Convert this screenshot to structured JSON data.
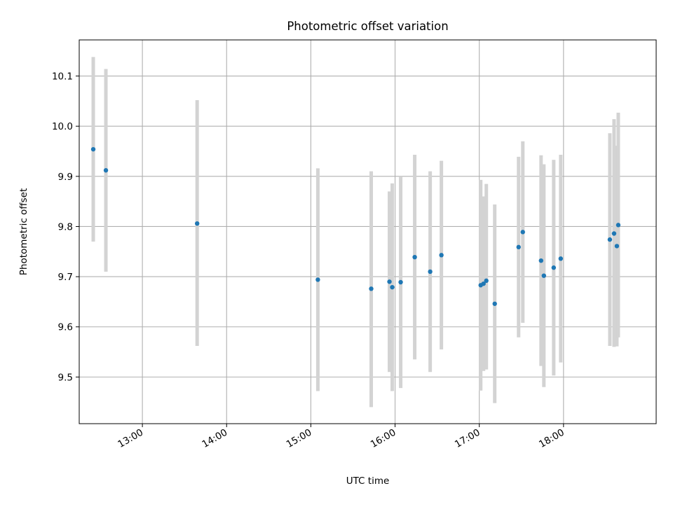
{
  "chart_data": {
    "type": "scatter",
    "title": "Photometric offset variation",
    "xlabel": "UTC time",
    "ylabel": "Photometric offset",
    "x_axis": {
      "kind": "time",
      "range": [
        "12:15",
        "19:06"
      ],
      "ticks": [
        "13:00",
        "14:00",
        "15:00",
        "16:00",
        "17:00",
        "18:00"
      ]
    },
    "y_axis": {
      "range": [
        9.407,
        10.172
      ],
      "ticks": [
        "9.5",
        "9.6",
        "9.7",
        "9.8",
        "9.9",
        "10.0",
        "10.1"
      ]
    },
    "grid": true,
    "errorbar_color": "#d3d3d3",
    "marker_color": "#1f77b4",
    "points": [
      {
        "x": "12:25",
        "y": 9.954,
        "lo": 9.77,
        "hi": 10.138
      },
      {
        "x": "12:34",
        "y": 9.912,
        "lo": 9.71,
        "hi": 10.114
      },
      {
        "x": "13:39",
        "y": 9.806,
        "lo": 9.562,
        "hi": 10.052
      },
      {
        "x": "15:05",
        "y": 9.694,
        "lo": 9.472,
        "hi": 9.916
      },
      {
        "x": "15:43",
        "y": 9.676,
        "lo": 9.44,
        "hi": 9.91
      },
      {
        "x": "15:56",
        "y": 9.69,
        "lo": 9.51,
        "hi": 9.87
      },
      {
        "x": "15:58",
        "y": 9.679,
        "lo": 9.472,
        "hi": 9.886
      },
      {
        "x": "16:04",
        "y": 9.689,
        "lo": 9.478,
        "hi": 9.9
      },
      {
        "x": "16:14",
        "y": 9.739,
        "lo": 9.535,
        "hi": 9.943
      },
      {
        "x": "16:25",
        "y": 9.71,
        "lo": 9.51,
        "hi": 9.91
      },
      {
        "x": "16:33",
        "y": 9.743,
        "lo": 9.555,
        "hi": 9.931
      },
      {
        "x": "17:01",
        "y": 9.683,
        "lo": 9.473,
        "hi": 9.893
      },
      {
        "x": "17:03",
        "y": 9.686,
        "lo": 9.512,
        "hi": 9.86
      },
      {
        "x": "17:05",
        "y": 9.692,
        "lo": 9.515,
        "hi": 9.885
      },
      {
        "x": "17:11",
        "y": 9.646,
        "lo": 9.448,
        "hi": 9.844
      },
      {
        "x": "17:28",
        "y": 9.759,
        "lo": 9.579,
        "hi": 9.939
      },
      {
        "x": "17:31",
        "y": 9.789,
        "lo": 9.608,
        "hi": 9.97
      },
      {
        "x": "17:44",
        "y": 9.732,
        "lo": 9.522,
        "hi": 9.942
      },
      {
        "x": "17:46",
        "y": 9.702,
        "lo": 9.48,
        "hi": 9.924
      },
      {
        "x": "17:53",
        "y": 9.718,
        "lo": 9.503,
        "hi": 9.933
      },
      {
        "x": "17:58",
        "y": 9.736,
        "lo": 9.529,
        "hi": 9.943
      },
      {
        "x": "18:33",
        "y": 9.774,
        "lo": 9.562,
        "hi": 9.986
      },
      {
        "x": "18:36",
        "y": 9.786,
        "lo": 9.56,
        "hi": 10.014
      },
      {
        "x": "18:38",
        "y": 9.761,
        "lo": 9.561,
        "hi": 9.961
      },
      {
        "x": "18:39",
        "y": 9.803,
        "lo": 9.579,
        "hi": 10.027
      }
    ]
  }
}
